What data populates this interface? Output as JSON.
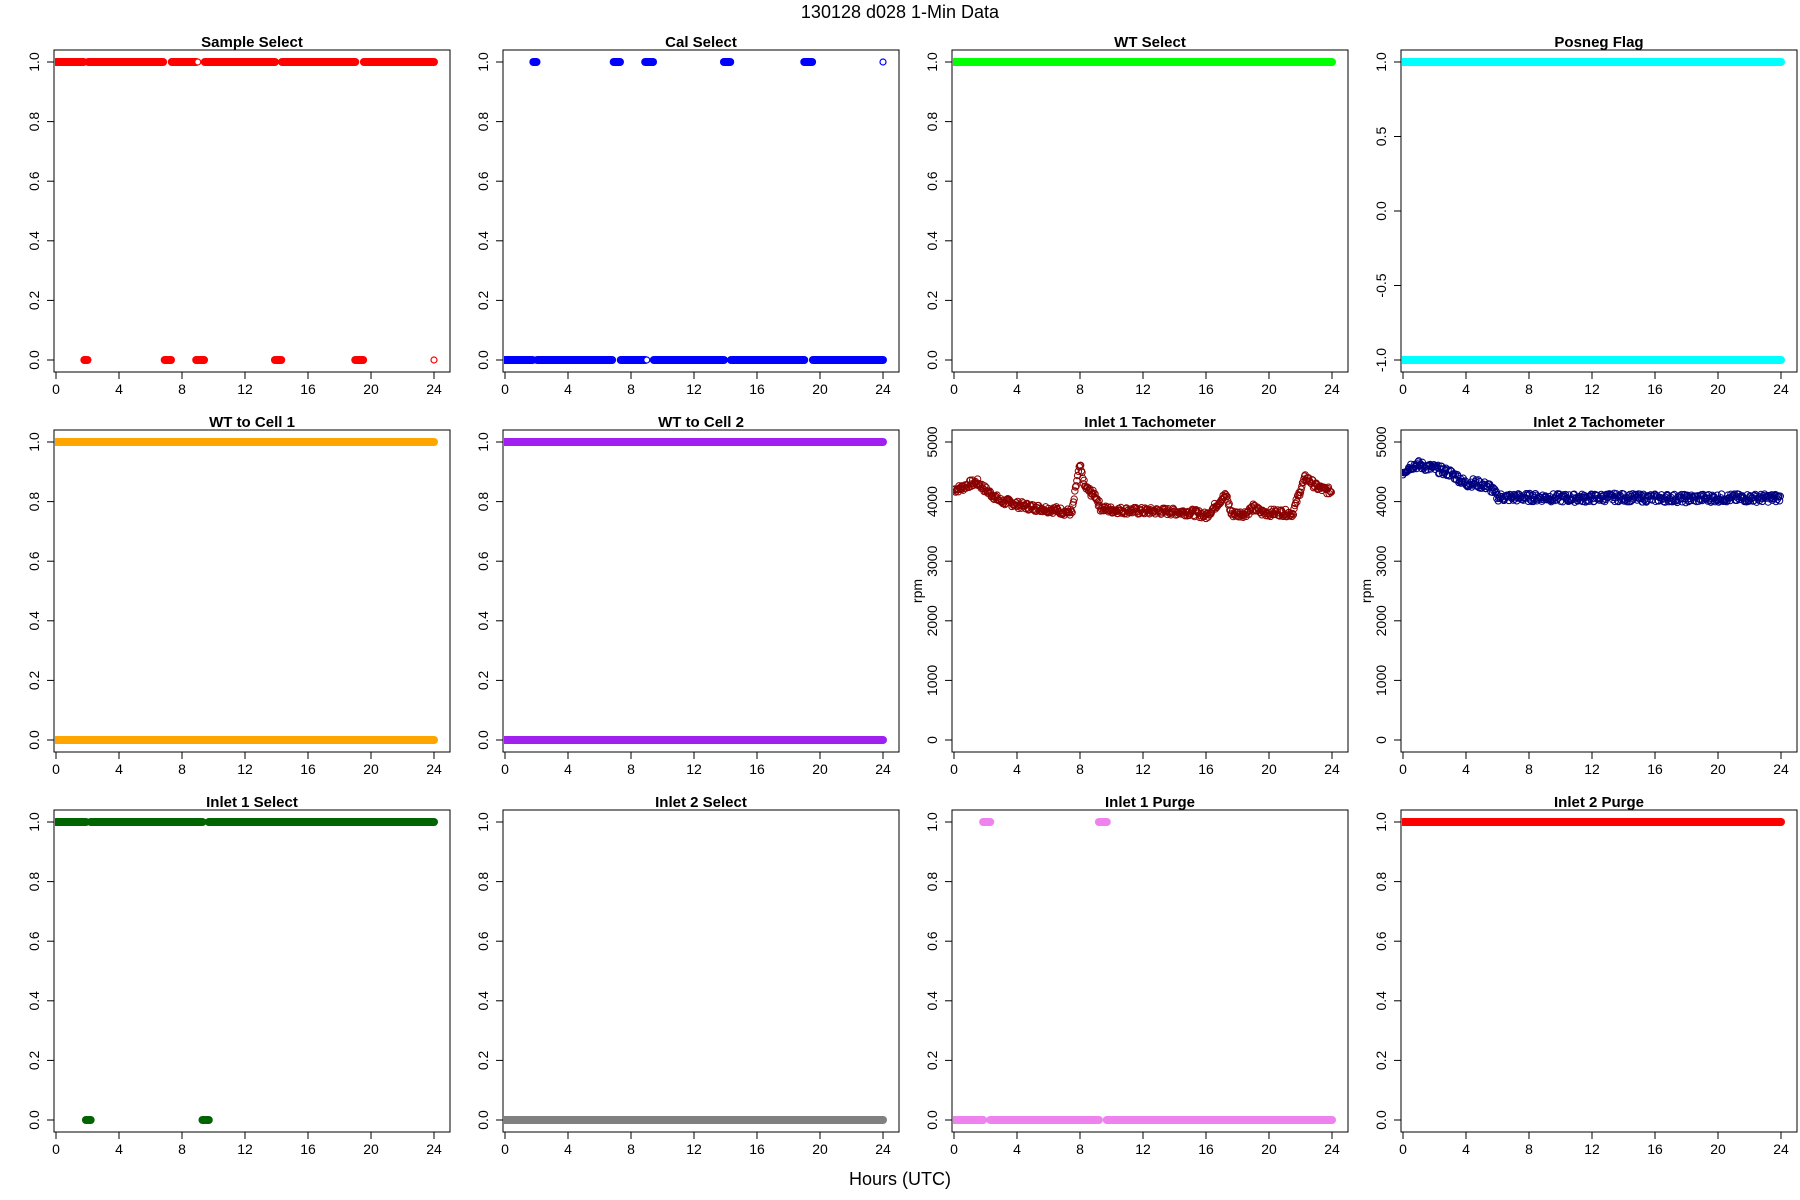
{
  "figure": {
    "title": "130128    d028    1-Min Data",
    "xlabel": "Hours (UTC)"
  },
  "chart_data": [
    {
      "type": "scatter",
      "title": "Sample Select",
      "ylabel": "",
      "xlim": [
        0,
        24
      ],
      "ylim": [
        0,
        1
      ],
      "xticks": [
        0,
        4,
        8,
        12,
        16,
        20,
        24
      ],
      "yticks": [
        0,
        0.2,
        0.4,
        0.6,
        0.8,
        1
      ],
      "ytick_labels": [
        "0.0",
        "0.2",
        "0.4",
        "0.6",
        "0.8",
        "1.0"
      ],
      "color": "#ff0000",
      "segments": [
        [
          0,
          1.75,
          1
        ],
        [
          1.8,
          2.0,
          0
        ],
        [
          2.05,
          6.8,
          1
        ],
        [
          6.9,
          7.3,
          0
        ],
        [
          7.35,
          8.9,
          1
        ],
        [
          8.9,
          9.4,
          0
        ],
        [
          9.45,
          13.9,
          1
        ],
        [
          13.9,
          14.3,
          0
        ],
        [
          14.35,
          19.0,
          1
        ],
        [
          19.0,
          19.5,
          0
        ],
        [
          19.55,
          24,
          1
        ]
      ],
      "points": [
        [
          9.0,
          1
        ],
        [
          24,
          0
        ]
      ]
    },
    {
      "type": "scatter",
      "title": "Cal Select",
      "ylabel": "",
      "xlim": [
        0,
        24
      ],
      "ylim": [
        0,
        1
      ],
      "xticks": [
        0,
        4,
        8,
        12,
        16,
        20,
        24
      ],
      "yticks": [
        0,
        0.2,
        0.4,
        0.6,
        0.8,
        1
      ],
      "ytick_labels": [
        "0.0",
        "0.2",
        "0.4",
        "0.6",
        "0.8",
        "1.0"
      ],
      "color": "#0000ff",
      "segments": [
        [
          0,
          1.75,
          0
        ],
        [
          1.8,
          2.0,
          1
        ],
        [
          2.05,
          6.8,
          0
        ],
        [
          6.9,
          7.3,
          1
        ],
        [
          7.35,
          8.9,
          0
        ],
        [
          8.9,
          9.4,
          1
        ],
        [
          9.45,
          13.9,
          0
        ],
        [
          13.9,
          14.3,
          1
        ],
        [
          14.35,
          19.0,
          0
        ],
        [
          19.0,
          19.5,
          1
        ],
        [
          19.55,
          24,
          0
        ]
      ],
      "points": [
        [
          24,
          1
        ],
        [
          9.0,
          0
        ]
      ]
    },
    {
      "type": "scatter",
      "title": "WT Select",
      "ylabel": "",
      "xlim": [
        0,
        24
      ],
      "ylim": [
        0,
        1
      ],
      "xticks": [
        0,
        4,
        8,
        12,
        16,
        20,
        24
      ],
      "yticks": [
        0,
        0.2,
        0.4,
        0.6,
        0.8,
        1
      ],
      "ytick_labels": [
        "0.0",
        "0.2",
        "0.4",
        "0.6",
        "0.8",
        "1.0"
      ],
      "color": "#00ff00",
      "segments": [
        [
          0,
          24,
          1
        ]
      ],
      "points": []
    },
    {
      "type": "scatter",
      "title": "Posneg Flag",
      "ylabel": "",
      "xlim": [
        0,
        24
      ],
      "ylim": [
        -1,
        1
      ],
      "xticks": [
        0,
        4,
        8,
        12,
        16,
        20,
        24
      ],
      "yticks": [
        -1,
        -0.5,
        0,
        0.5,
        1
      ],
      "ytick_labels": [
        "-1.0",
        "-0.5",
        "0.0",
        "0.5",
        "1.0"
      ],
      "color": "#00ffff",
      "segments": [
        [
          0,
          24,
          1
        ],
        [
          0,
          24,
          -1
        ]
      ],
      "points": []
    },
    {
      "type": "scatter",
      "title": "WT to Cell 1",
      "ylabel": "",
      "xlim": [
        0,
        24
      ],
      "ylim": [
        0,
        1
      ],
      "xticks": [
        0,
        4,
        8,
        12,
        16,
        20,
        24
      ],
      "yticks": [
        0,
        0.2,
        0.4,
        0.6,
        0.8,
        1
      ],
      "ytick_labels": [
        "0.0",
        "0.2",
        "0.4",
        "0.6",
        "0.8",
        "1.0"
      ],
      "color": "#ffa500",
      "segments": [
        [
          0,
          24,
          1
        ],
        [
          0,
          24,
          0
        ]
      ],
      "points": []
    },
    {
      "type": "scatter",
      "title": "WT to Cell 2",
      "ylabel": "",
      "xlim": [
        0,
        24
      ],
      "ylim": [
        0,
        1
      ],
      "xticks": [
        0,
        4,
        8,
        12,
        16,
        20,
        24
      ],
      "yticks": [
        0,
        0.2,
        0.4,
        0.6,
        0.8,
        1
      ],
      "ytick_labels": [
        "0.0",
        "0.2",
        "0.4",
        "0.6",
        "0.8",
        "1.0"
      ],
      "color": "#a020f0",
      "segments": [
        [
          0,
          24,
          1
        ],
        [
          0,
          24,
          0
        ]
      ],
      "points": []
    },
    {
      "type": "scatter",
      "title": "Inlet 1 Tachometer",
      "ylabel": "rpm",
      "xlim": [
        0,
        24
      ],
      "ylim": [
        0,
        5000
      ],
      "xticks": [
        0,
        4,
        8,
        12,
        16,
        20,
        24
      ],
      "yticks": [
        0,
        1000,
        2000,
        3000,
        4000,
        5000
      ],
      "ytick_labels": [
        "0",
        "1000",
        "2000",
        "3000",
        "4000",
        "5000"
      ],
      "color": "#8b0000",
      "series_style": "open",
      "x": [
        0,
        0.5,
        1,
        1.5,
        2,
        2.5,
        3,
        3.5,
        4,
        4.5,
        5,
        5.5,
        6,
        6.5,
        7,
        7.5,
        7.8,
        8,
        8.3,
        8.7,
        9,
        9.3,
        9.5,
        10,
        11,
        12,
        13,
        14,
        15,
        15.5,
        16,
        16.5,
        17,
        17.3,
        17.6,
        18,
        18.5,
        19,
        19.5,
        20,
        20.5,
        21,
        21.5,
        22,
        22.3,
        22.6,
        23,
        23.5,
        24
      ],
      "y": [
        4200,
        4230,
        4300,
        4320,
        4200,
        4100,
        4000,
        3990,
        3950,
        3930,
        3900,
        3890,
        3870,
        3860,
        3830,
        3820,
        4350,
        4600,
        4250,
        4150,
        4100,
        3900,
        3880,
        3860,
        3850,
        3840,
        3840,
        3830,
        3820,
        3800,
        3760,
        3900,
        4050,
        4100,
        3800,
        3790,
        3800,
        3900,
        3820,
        3810,
        3820,
        3810,
        3800,
        4200,
        4400,
        4350,
        4250,
        4200,
        4170
      ],
      "jitter": 60
    },
    {
      "type": "scatter",
      "title": "Inlet 2 Tachometer",
      "ylabel": "rpm",
      "xlim": [
        0,
        24
      ],
      "ylim": [
        0,
        5000
      ],
      "xticks": [
        0,
        4,
        8,
        12,
        16,
        20,
        24
      ],
      "yticks": [
        0,
        1000,
        2000,
        3000,
        4000,
        5000
      ],
      "ytick_labels": [
        "0",
        "1000",
        "2000",
        "3000",
        "4000",
        "5000"
      ],
      "color": "#000080",
      "series_style": "open",
      "x": [
        0,
        0.5,
        1,
        1.5,
        2,
        2.5,
        3,
        3.5,
        4,
        4.5,
        5,
        5.5,
        6,
        6.5,
        7,
        8,
        9,
        10,
        11,
        12,
        13,
        14,
        15,
        16,
        17,
        18,
        19,
        20,
        21,
        22,
        23,
        24
      ],
      "y": [
        4500,
        4600,
        4620,
        4580,
        4560,
        4520,
        4480,
        4400,
        4300,
        4320,
        4280,
        4250,
        4080,
        4070,
        4070,
        4070,
        4070,
        4060,
        4060,
        4060,
        4070,
        4070,
        4060,
        4060,
        4060,
        4050,
        4060,
        4060,
        4060,
        4060,
        4060,
        4060
      ],
      "jitter": 70
    },
    {
      "type": "scatter",
      "title": "Inlet 1 Select",
      "ylabel": "",
      "xlim": [
        0,
        24
      ],
      "ylim": [
        0,
        1
      ],
      "xticks": [
        0,
        4,
        8,
        12,
        16,
        20,
        24
      ],
      "yticks": [
        0,
        0.2,
        0.4,
        0.6,
        0.8,
        1
      ],
      "ytick_labels": [
        "0.0",
        "0.2",
        "0.4",
        "0.6",
        "0.8",
        "1.0"
      ],
      "color": "#006400",
      "segments": [
        [
          0,
          1.9,
          1
        ],
        [
          1.9,
          2.2,
          0
        ],
        [
          2.2,
          9.3,
          1
        ],
        [
          9.3,
          9.7,
          0
        ],
        [
          9.7,
          24,
          1
        ]
      ],
      "points": []
    },
    {
      "type": "scatter",
      "title": "Inlet 2 Select",
      "ylabel": "",
      "xlim": [
        0,
        24
      ],
      "ylim": [
        0,
        1
      ],
      "xticks": [
        0,
        4,
        8,
        12,
        16,
        20,
        24
      ],
      "yticks": [
        0,
        0.2,
        0.4,
        0.6,
        0.8,
        1
      ],
      "ytick_labels": [
        "0.0",
        "0.2",
        "0.4",
        "0.6",
        "0.8",
        "1.0"
      ],
      "color": "#808080",
      "segments": [
        [
          0,
          24,
          0
        ]
      ],
      "points": []
    },
    {
      "type": "scatter",
      "title": "Inlet 1 Purge",
      "ylabel": "",
      "xlim": [
        0,
        24
      ],
      "ylim": [
        0,
        1
      ],
      "xticks": [
        0,
        4,
        8,
        12,
        16,
        20,
        24
      ],
      "yticks": [
        0,
        0.2,
        0.4,
        0.6,
        0.8,
        1
      ],
      "ytick_labels": [
        "0.0",
        "0.2",
        "0.4",
        "0.6",
        "0.8",
        "1.0"
      ],
      "color": "#ee82ee",
      "segments": [
        [
          0,
          1.85,
          0
        ],
        [
          1.85,
          2.3,
          1
        ],
        [
          2.3,
          9.2,
          0
        ],
        [
          9.2,
          9.7,
          1
        ],
        [
          9.7,
          24,
          0
        ]
      ],
      "points": []
    },
    {
      "type": "scatter",
      "title": "Inlet 2 Purge",
      "ylabel": "",
      "xlim": [
        0,
        24
      ],
      "ylim": [
        0,
        1
      ],
      "xticks": [
        0,
        4,
        8,
        12,
        16,
        20,
        24
      ],
      "yticks": [
        0,
        0.2,
        0.4,
        0.6,
        0.8,
        1
      ],
      "ytick_labels": [
        "0.0",
        "0.2",
        "0.4",
        "0.6",
        "0.8",
        "1.0"
      ],
      "color": "#ff0000",
      "segments": [
        [
          0,
          24,
          1
        ]
      ],
      "points": []
    }
  ]
}
